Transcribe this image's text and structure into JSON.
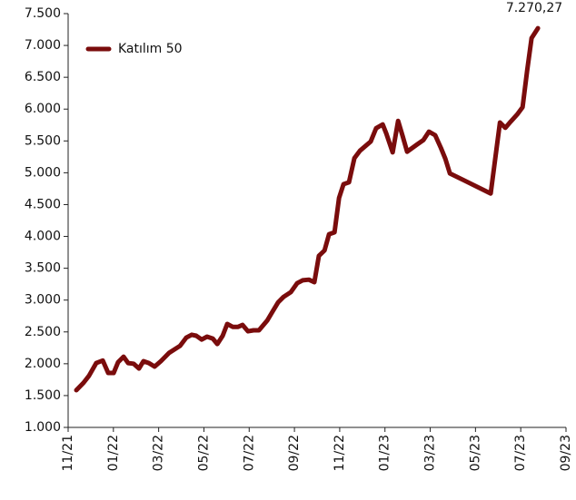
{
  "chart_data": {
    "type": "line",
    "series": [
      {
        "name": "Katılım 50",
        "color": "#7a0c0c",
        "x": [
          0.36,
          0.68,
          0.92,
          1.24,
          1.53,
          1.77,
          2.01,
          2.21,
          2.45,
          2.65,
          2.89,
          3.13,
          3.33,
          3.57,
          3.82,
          4.1,
          4.46,
          4.94,
          5.22,
          5.46,
          5.66,
          5.9,
          6.14,
          6.39,
          6.59,
          6.83,
          7.03,
          7.27,
          7.51,
          7.71,
          7.95,
          8.19,
          8.43,
          8.8,
          9.04,
          9.28,
          9.52,
          9.84,
          10.12,
          10.36,
          10.64,
          10.88,
          11.08,
          11.33,
          11.53,
          11.77,
          11.97,
          12.17,
          12.41,
          12.65,
          12.89,
          13.17,
          13.37,
          13.61,
          13.9,
          14.06,
          14.34,
          14.58,
          14.78,
          14.98,
          15.42,
          15.7,
          15.94,
          16.22,
          16.47,
          16.67,
          16.87,
          18.67,
          19.08,
          19.32,
          19.56,
          19.84,
          20.08,
          20.28,
          20.48,
          20.76
        ],
        "values": [
          1584,
          1700,
          1810,
          2010,
          2050,
          1855,
          1855,
          2025,
          2110,
          2010,
          2000,
          1925,
          2040,
          2010,
          1955,
          2040,
          2170,
          2280,
          2410,
          2455,
          2440,
          2380,
          2425,
          2395,
          2310,
          2440,
          2625,
          2580,
          2580,
          2610,
          2510,
          2525,
          2525,
          2680,
          2825,
          2965,
          3050,
          3125,
          3265,
          3310,
          3320,
          3280,
          3695,
          3780,
          4035,
          4065,
          4605,
          4820,
          4850,
          5230,
          5345,
          5430,
          5490,
          5700,
          5760,
          5615,
          5320,
          5815,
          5575,
          5330,
          5445,
          5515,
          5645,
          5590,
          5390,
          5220,
          4990,
          4675,
          5790,
          5705,
          5805,
          5915,
          6030,
          6600,
          7115,
          7270.27
        ]
      }
    ],
    "annotation": {
      "label": "7.270,27",
      "x": 20.76,
      "y": 7270.27
    },
    "legend": "upper-left",
    "xlim": [
      0,
      22
    ],
    "xticks": [
      {
        "value": 0,
        "label": "11/21"
      },
      {
        "value": 2,
        "label": "01/22"
      },
      {
        "value": 4,
        "label": "03/22"
      },
      {
        "value": 6,
        "label": "05/22"
      },
      {
        "value": 8,
        "label": "07/22"
      },
      {
        "value": 10,
        "label": "09/22"
      },
      {
        "value": 12,
        "label": "11/22"
      },
      {
        "value": 14,
        "label": "01/23"
      },
      {
        "value": 16,
        "label": "03/23"
      },
      {
        "value": 18,
        "label": "05/23"
      },
      {
        "value": 20,
        "label": "07/23"
      },
      {
        "value": 22,
        "label": "09/23"
      }
    ],
    "ylim": [
      1000,
      7500
    ],
    "yticks": [
      {
        "value": 1000,
        "label": "1.000"
      },
      {
        "value": 1500,
        "label": "1.500"
      },
      {
        "value": 2000,
        "label": "2.000"
      },
      {
        "value": 2500,
        "label": "2.500"
      },
      {
        "value": 3000,
        "label": "3.000"
      },
      {
        "value": 3500,
        "label": "3.500"
      },
      {
        "value": 4000,
        "label": "4.000"
      },
      {
        "value": 4500,
        "label": "4.500"
      },
      {
        "value": 5000,
        "label": "5.000"
      },
      {
        "value": 5500,
        "label": "5.500"
      },
      {
        "value": 6000,
        "label": "6.000"
      },
      {
        "value": 6500,
        "label": "6.500"
      },
      {
        "value": 7000,
        "label": "7.000"
      },
      {
        "value": 7500,
        "label": "7.500"
      }
    ],
    "grid": false
  }
}
